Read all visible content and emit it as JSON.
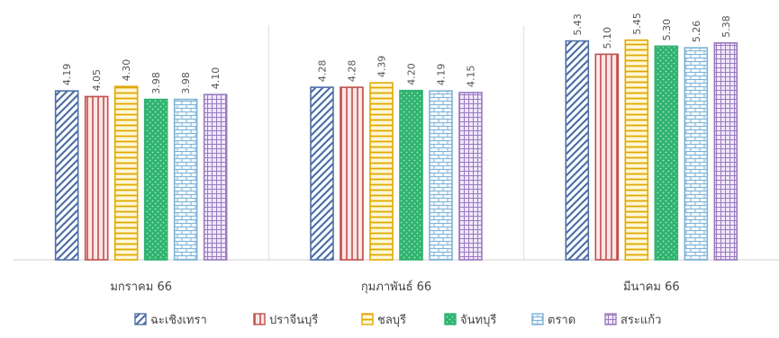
{
  "chart_data": {
    "type": "bar",
    "categories": [
      "มกราคม 66",
      "กุมภาพันธ์ 66",
      "มีนาคม 66"
    ],
    "series": [
      {
        "name": "ฉะเชิงเทรา",
        "values": [
          4.19,
          4.28,
          5.43
        ],
        "color": "#4f6fa8",
        "pattern": "diag"
      },
      {
        "name": "ปราจีนบุรี",
        "values": [
          4.05,
          4.28,
          5.1
        ],
        "color": "#c0504d",
        "pattern": "vert"
      },
      {
        "name": "ชลบุรี",
        "values": [
          4.3,
          4.39,
          5.45
        ],
        "color": "#e0a800",
        "pattern": "horiz"
      },
      {
        "name": "จันทบุรี",
        "values": [
          3.98,
          4.2,
          5.3
        ],
        "color": "#2fb36f",
        "pattern": "dots"
      },
      {
        "name": "ตราด",
        "values": [
          3.98,
          4.19,
          5.26
        ],
        "color": "#7fb3d5",
        "pattern": "brick"
      },
      {
        "name": "สระแก้ว",
        "values": [
          4.1,
          4.15,
          5.38
        ],
        "color": "#9a7bbf",
        "pattern": "grid"
      }
    ],
    "value_labels": [
      [
        "4.19",
        "4.28",
        "5.43"
      ],
      [
        "4.05",
        "4.28",
        "5.10"
      ],
      [
        "4.30",
        "4.39",
        "5.45"
      ],
      [
        "3.98",
        "4.20",
        "5.30"
      ],
      [
        "3.98",
        "4.19",
        "5.26"
      ],
      [
        "4.10",
        "4.15",
        "5.38"
      ]
    ],
    "ylim": [
      0,
      6
    ],
    "grid": false,
    "legend_position": "bottom",
    "separators_between_groups": true
  }
}
